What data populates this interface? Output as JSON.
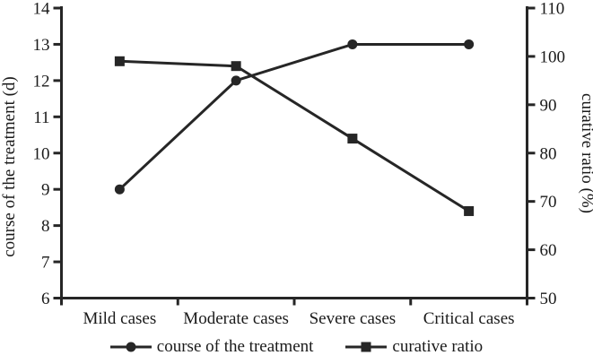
{
  "chart_data": {
    "type": "line",
    "categories": [
      "Mild cases",
      "Moderate cases",
      "Severe cases",
      "Critical cases"
    ],
    "series": [
      {
        "name": "course of the treatment",
        "axis": "left",
        "marker": "circle",
        "values": [
          9,
          12,
          13,
          13
        ]
      },
      {
        "name": "curative ratio",
        "axis": "right",
        "marker": "square",
        "values": [
          99,
          98,
          83,
          68
        ]
      }
    ],
    "left_axis": {
      "label": "course of the treatment (d)",
      "min": 6,
      "max": 14,
      "step": 1,
      "ticks": [
        6,
        7,
        8,
        9,
        10,
        11,
        12,
        13,
        14
      ]
    },
    "right_axis": {
      "label": "curative ratio (%)",
      "min": 50,
      "max": 110,
      "step": 10,
      "ticks": [
        50,
        60,
        70,
        80,
        90,
        100,
        110
      ]
    },
    "legend_position": "bottom",
    "grid": false,
    "colors": {
      "line": "#262626",
      "text": "#1a1a1a",
      "background": "#ffffff"
    }
  }
}
